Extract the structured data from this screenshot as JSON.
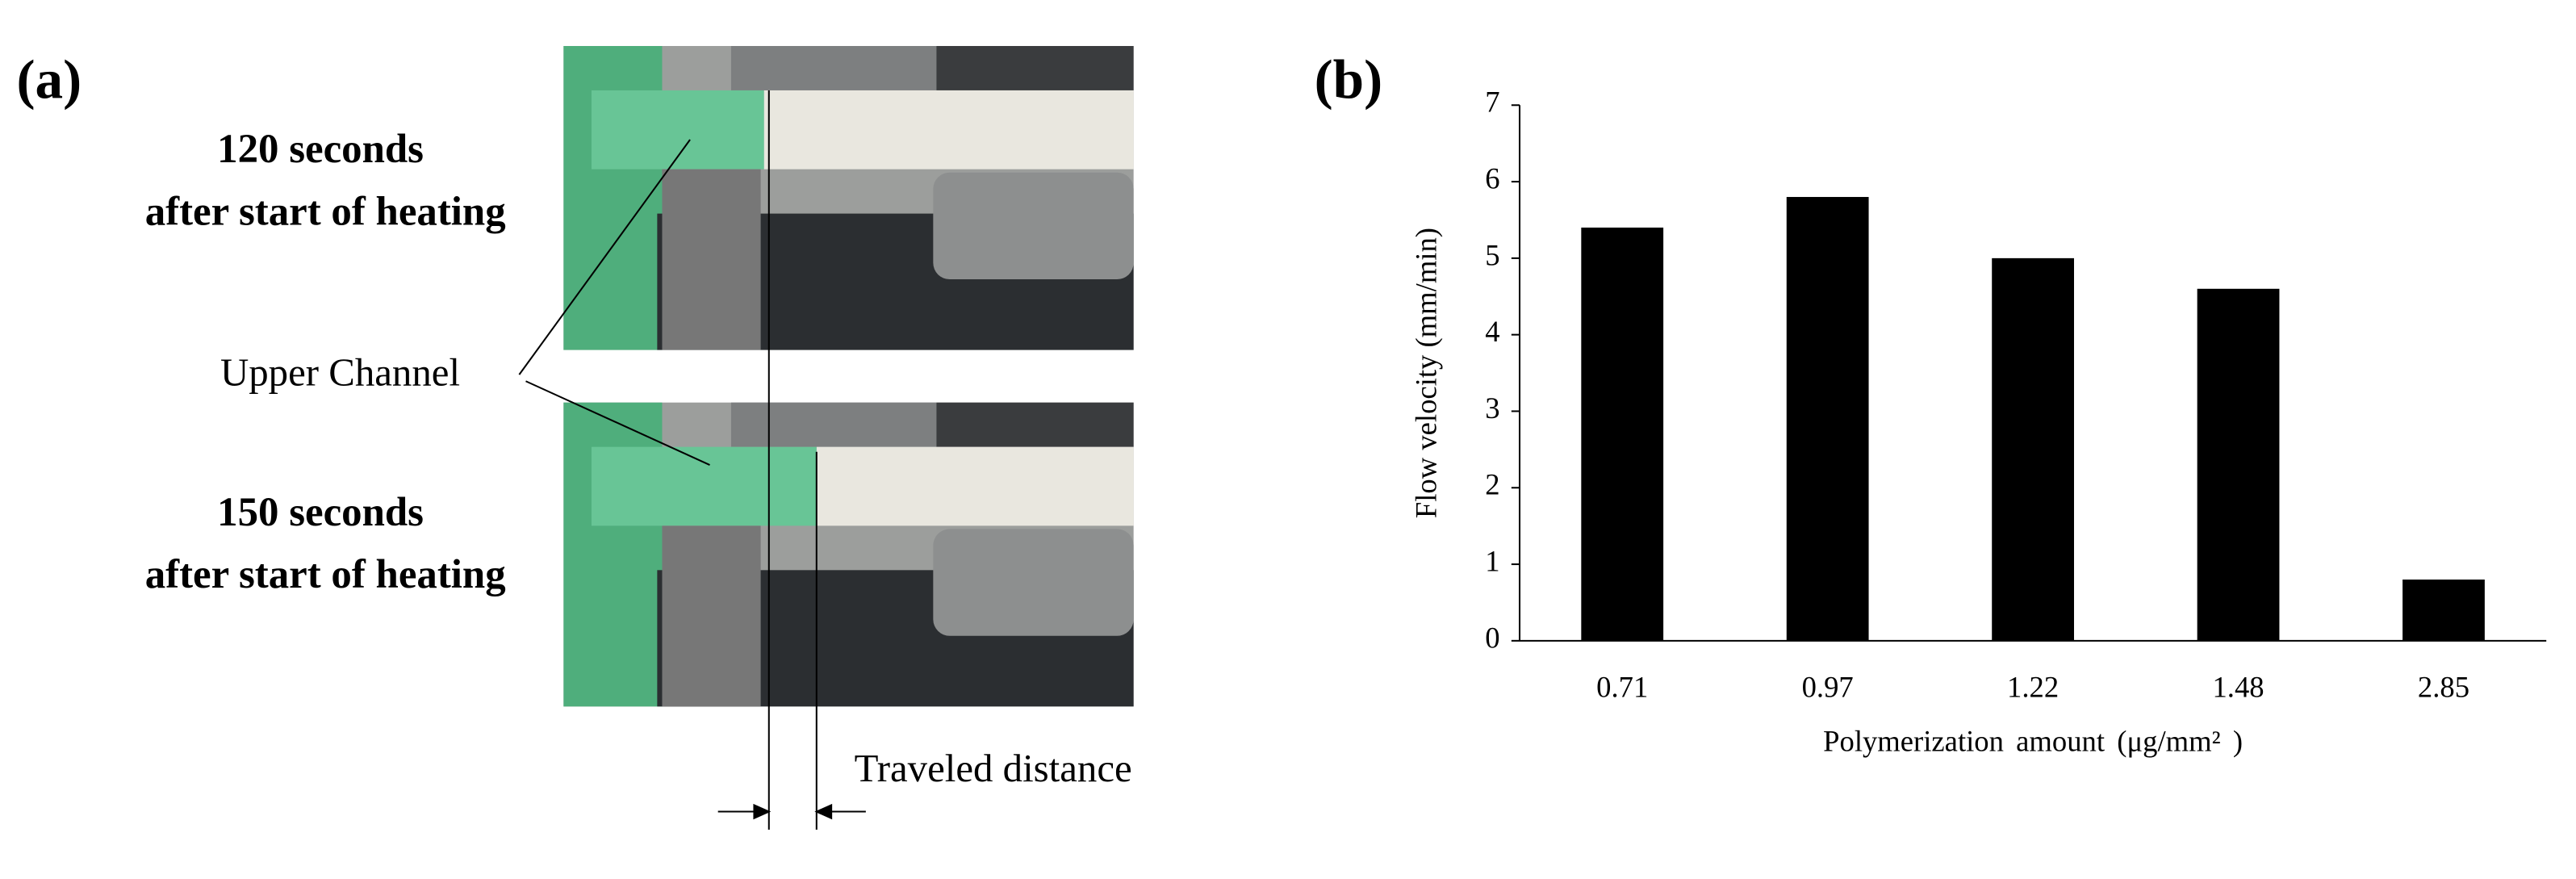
{
  "panel_a": {
    "label": "(a)",
    "top_caption": [
      "120 seconds",
      "after start of heating"
    ],
    "bottom_caption": [
      "150 seconds",
      "after start of heating"
    ],
    "channel_label": "Upper Channel",
    "distance_label": "Traveled distance"
  },
  "chart_data": {
    "type": "bar",
    "label": "(b)",
    "categories": [
      "0.71",
      "0.97",
      "1.22",
      "1.48",
      "2.85"
    ],
    "values": [
      5.4,
      5.8,
      5.0,
      4.6,
      0.8
    ],
    "color": "#000000",
    "ylim": [
      0,
      7
    ],
    "yticks": [
      0,
      1,
      2,
      3,
      4,
      5,
      6,
      7
    ],
    "grid": false,
    "y_label": "Flow velocity (mm/min)",
    "x_label": "Polymerization amount (μg/mm² )"
  }
}
